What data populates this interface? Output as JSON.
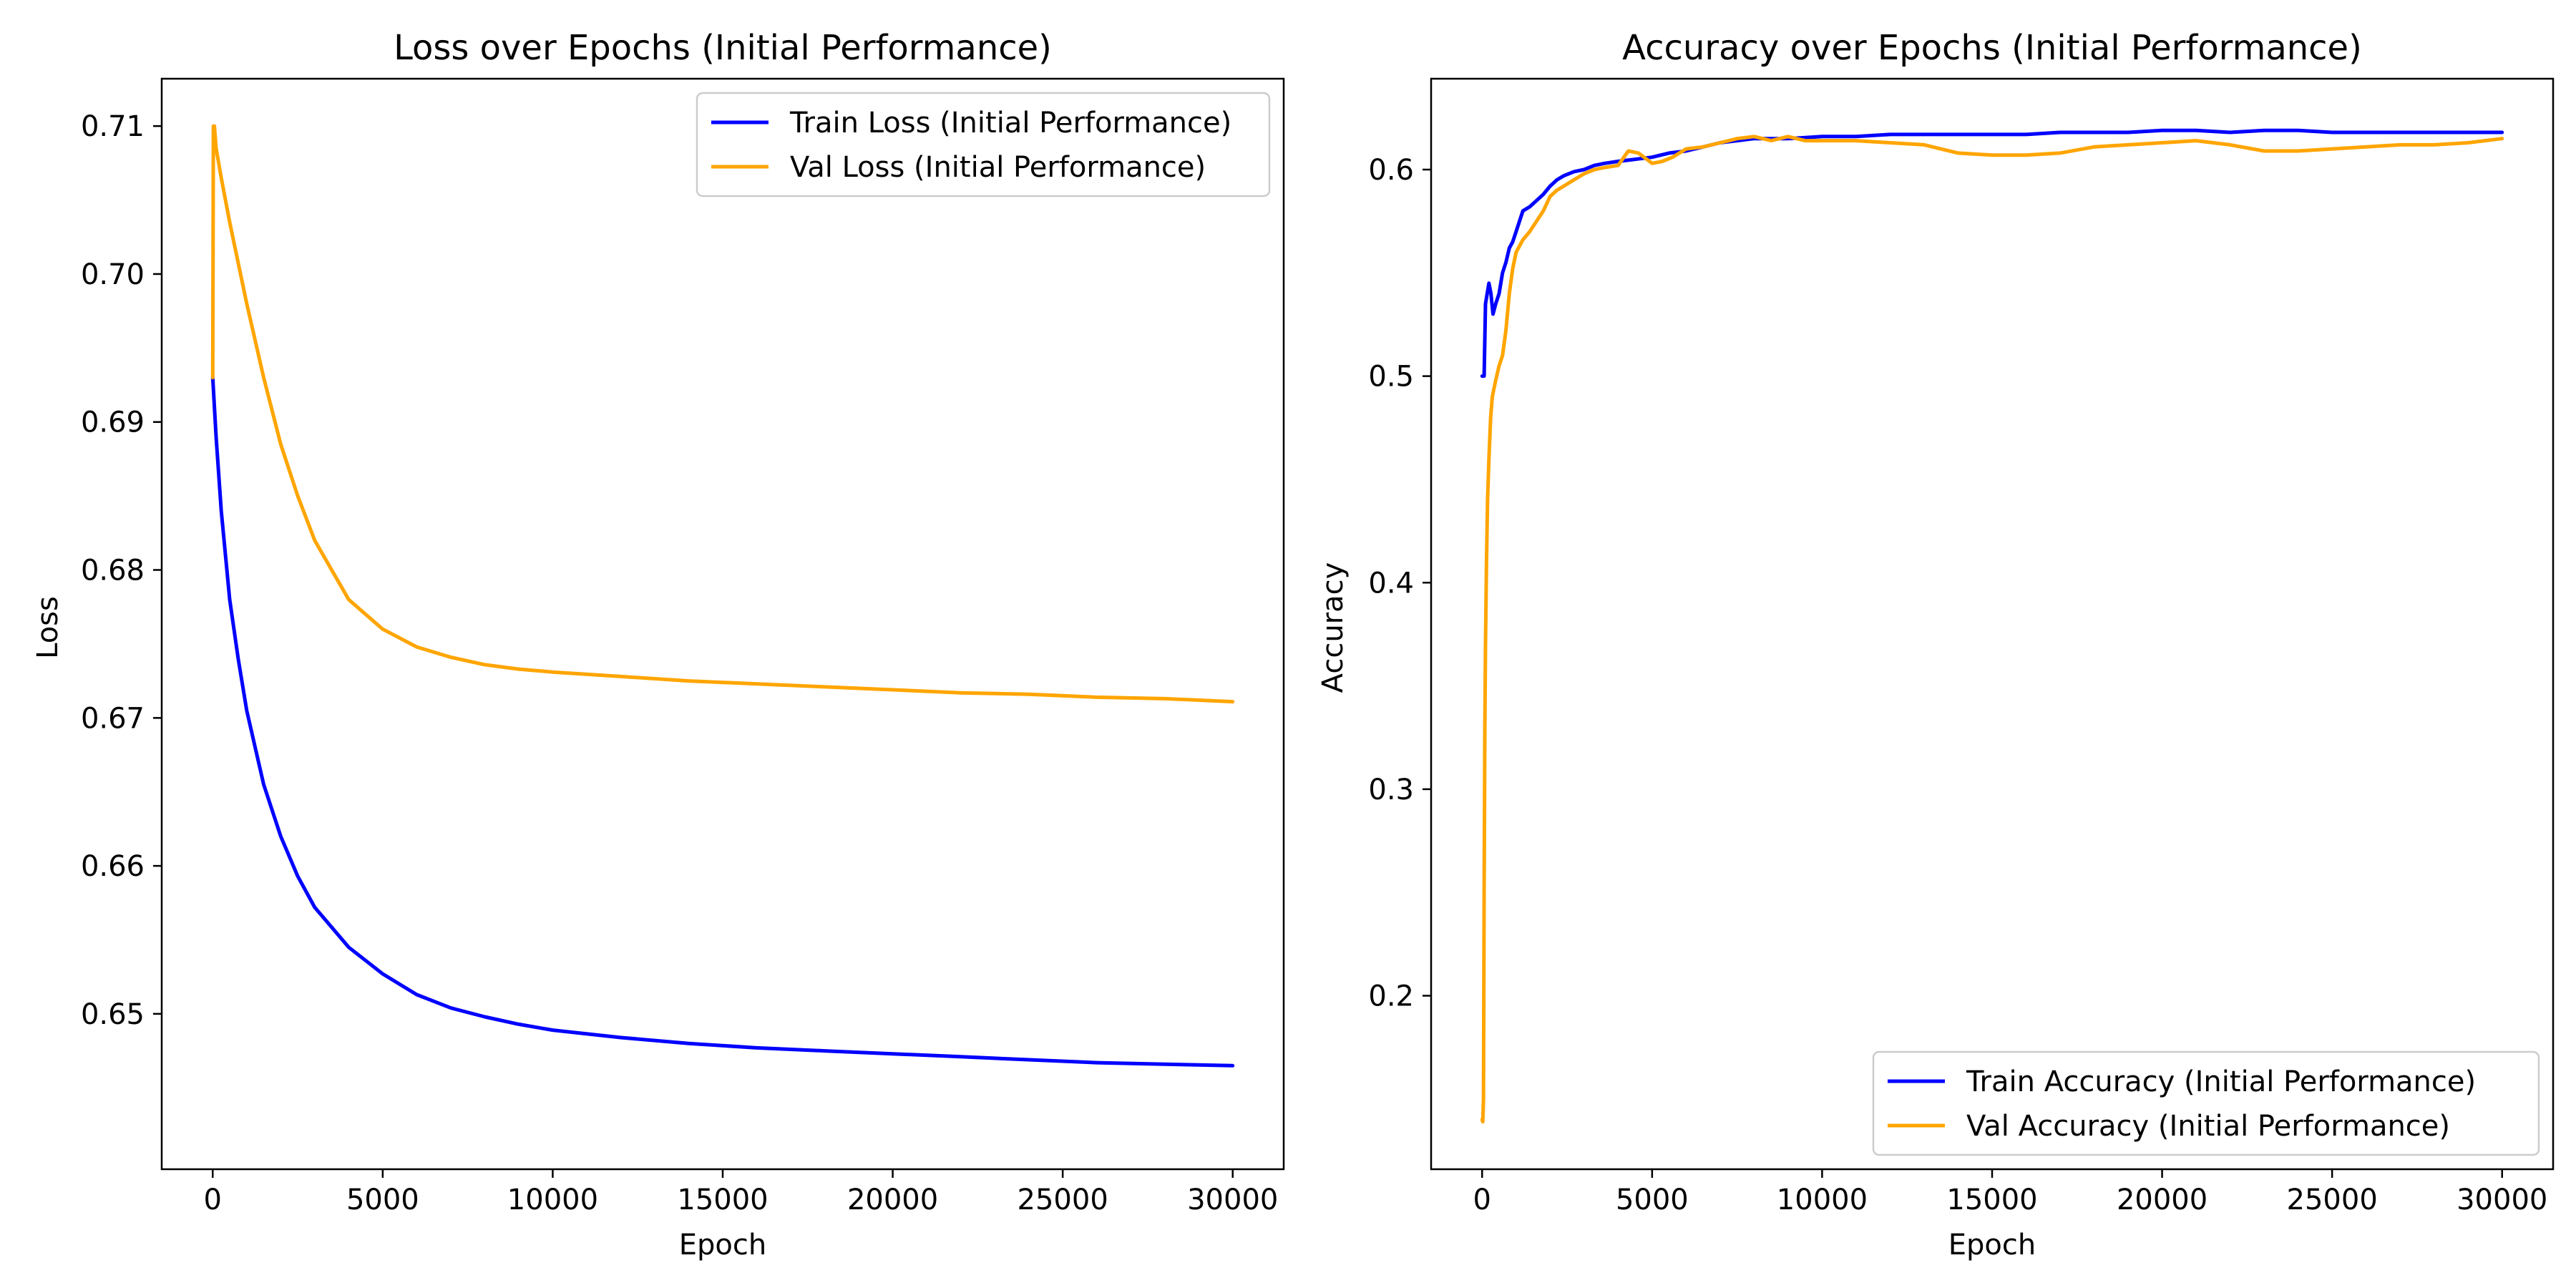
{
  "figure": {
    "background": "#ffffff"
  },
  "chart_data": [
    {
      "type": "line",
      "title": "Loss over Epochs (Initial Performance)",
      "xlabel": "Epoch",
      "ylabel": "Loss",
      "xlim": [
        -1500,
        31500
      ],
      "ylim": [
        0.6395,
        0.7132
      ],
      "xticks": [
        0,
        5000,
        10000,
        15000,
        20000,
        25000,
        30000
      ],
      "xtick_labels": [
        "0",
        "5000",
        "10000",
        "15000",
        "20000",
        "25000",
        "30000"
      ],
      "yticks": [
        0.65,
        0.66,
        0.67,
        0.68,
        0.69,
        0.7,
        0.71
      ],
      "ytick_labels": [
        "0.65",
        "0.66",
        "0.67",
        "0.68",
        "0.69",
        "0.70",
        "0.71"
      ],
      "grid": false,
      "legend_position": "upper right",
      "series": [
        {
          "name": "Train Loss (Initial Performance)",
          "color": "#0000ff",
          "x": [
            0,
            100,
            250,
            500,
            750,
            1000,
            1500,
            2000,
            2500,
            3000,
            4000,
            5000,
            6000,
            7000,
            8000,
            9000,
            10000,
            12000,
            14000,
            16000,
            18000,
            20000,
            22000,
            24000,
            26000,
            28000,
            30000
          ],
          "y": [
            0.693,
            0.689,
            0.684,
            0.678,
            0.674,
            0.6705,
            0.6655,
            0.662,
            0.6593,
            0.6572,
            0.6545,
            0.6527,
            0.6513,
            0.6504,
            0.6498,
            0.6493,
            0.6489,
            0.6484,
            0.648,
            0.6477,
            0.6475,
            0.6473,
            0.6471,
            0.6469,
            0.6467,
            0.6466,
            0.6465
          ]
        },
        {
          "name": "Val Loss (Initial Performance)",
          "color": "#ffa500",
          "x": [
            0,
            20,
            50,
            100,
            250,
            500,
            1000,
            1500,
            2000,
            2500,
            3000,
            4000,
            5000,
            6000,
            7000,
            8000,
            9000,
            10000,
            12000,
            14000,
            16000,
            18000,
            20000,
            22000,
            24000,
            26000,
            28000,
            30000
          ],
          "y": [
            0.693,
            0.71,
            0.71,
            0.7085,
            0.7065,
            0.7035,
            0.698,
            0.693,
            0.6885,
            0.685,
            0.682,
            0.678,
            0.676,
            0.6748,
            0.6741,
            0.6736,
            0.6733,
            0.6731,
            0.6728,
            0.6725,
            0.6723,
            0.6721,
            0.6719,
            0.6717,
            0.6716,
            0.6714,
            0.6713,
            0.6711
          ]
        }
      ]
    },
    {
      "type": "line",
      "title": "Accuracy over Epochs (Initial Performance)",
      "xlabel": "Epoch",
      "ylabel": "Accuracy",
      "xlim": [
        -1500,
        31500
      ],
      "ylim": [
        0.116,
        0.644
      ],
      "xticks": [
        0,
        5000,
        10000,
        15000,
        20000,
        25000,
        30000
      ],
      "xtick_labels": [
        "0",
        "5000",
        "10000",
        "15000",
        "20000",
        "25000",
        "30000"
      ],
      "yticks": [
        0.2,
        0.3,
        0.4,
        0.5,
        0.6
      ],
      "ytick_labels": [
        "0.2",
        "0.3",
        "0.4",
        "0.5",
        "0.6"
      ],
      "grid": false,
      "legend_position": "lower right",
      "series": [
        {
          "name": "Train Accuracy (Initial Performance)",
          "color": "#0000ff",
          "x": [
            0,
            60,
            100,
            150,
            200,
            260,
            320,
            400,
            500,
            600,
            700,
            800,
            900,
            1000,
            1100,
            1200,
            1400,
            1600,
            1800,
            2000,
            2200,
            2400,
            2700,
            3000,
            3300,
            3600,
            4000,
            4500,
            5000,
            5500,
            6000,
            6500,
            7000,
            7500,
            8000,
            9000,
            10000,
            11000,
            12000,
            13000,
            14000,
            15000,
            16000,
            17000,
            18000,
            19000,
            20000,
            21000,
            22000,
            23000,
            24000,
            25000,
            26000,
            27000,
            28000,
            29000,
            30000
          ],
          "y": [
            0.5,
            0.5,
            0.535,
            0.54,
            0.545,
            0.54,
            0.53,
            0.535,
            0.54,
            0.55,
            0.555,
            0.562,
            0.565,
            0.57,
            0.575,
            0.58,
            0.582,
            0.585,
            0.588,
            0.592,
            0.595,
            0.597,
            0.599,
            0.6,
            0.602,
            0.603,
            0.604,
            0.605,
            0.606,
            0.608,
            0.609,
            0.611,
            0.613,
            0.614,
            0.615,
            0.615,
            0.616,
            0.616,
            0.617,
            0.617,
            0.617,
            0.617,
            0.617,
            0.618,
            0.618,
            0.618,
            0.619,
            0.619,
            0.618,
            0.619,
            0.619,
            0.618,
            0.618,
            0.618,
            0.618,
            0.618,
            0.618
          ]
        },
        {
          "name": "Val Accuracy (Initial Performance)",
          "color": "#ffa500",
          "x": [
            0,
            20,
            40,
            60,
            80,
            100,
            130,
            160,
            200,
            250,
            300,
            400,
            500,
            600,
            700,
            800,
            900,
            1000,
            1200,
            1400,
            1600,
            1800,
            2000,
            2200,
            2400,
            2600,
            2800,
            3000,
            3300,
            3600,
            4000,
            4300,
            4600,
            5000,
            5300,
            5600,
            6000,
            6500,
            7000,
            7500,
            8000,
            8500,
            9000,
            9500,
            10000,
            11000,
            12000,
            13000,
            14000,
            15000,
            16000,
            17000,
            18000,
            19000,
            20000,
            21000,
            22000,
            23000,
            24000,
            25000,
            26000,
            27000,
            28000,
            29000,
            30000
          ],
          "y": [
            0.14,
            0.139,
            0.15,
            0.25,
            0.33,
            0.37,
            0.41,
            0.44,
            0.46,
            0.48,
            0.49,
            0.498,
            0.505,
            0.51,
            0.522,
            0.54,
            0.552,
            0.56,
            0.566,
            0.57,
            0.575,
            0.58,
            0.587,
            0.59,
            0.592,
            0.594,
            0.596,
            0.598,
            0.6,
            0.601,
            0.602,
            0.609,
            0.608,
            0.603,
            0.604,
            0.606,
            0.61,
            0.611,
            0.613,
            0.615,
            0.616,
            0.614,
            0.616,
            0.614,
            0.614,
            0.614,
            0.613,
            0.612,
            0.608,
            0.607,
            0.607,
            0.608,
            0.611,
            0.612,
            0.613,
            0.614,
            0.612,
            0.609,
            0.609,
            0.61,
            0.611,
            0.612,
            0.612,
            0.613,
            0.615
          ]
        }
      ]
    }
  ]
}
